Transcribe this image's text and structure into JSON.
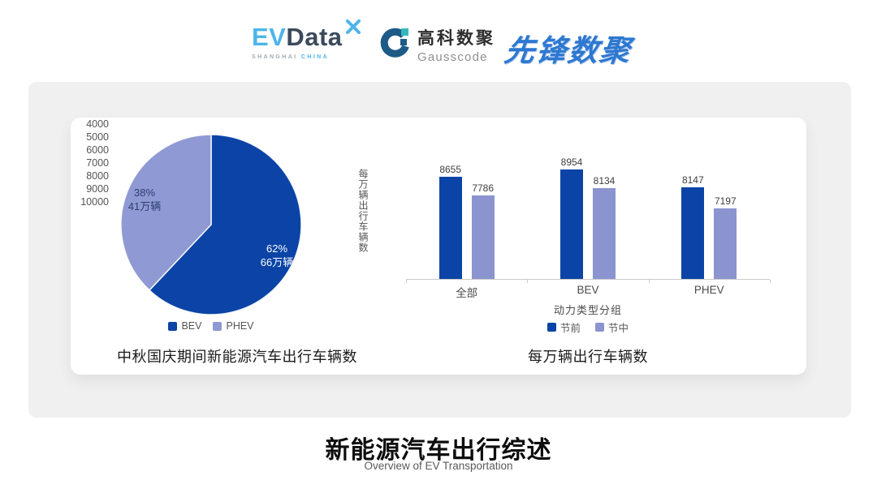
{
  "logos": {
    "evdata": {
      "ev": "EV",
      "data": "Data",
      "city": "SHANGHAI",
      "country": "CHINA"
    },
    "gausscode": {
      "cn": "高科数聚",
      "en": "Gausscode"
    },
    "xianfeng": {
      "text": "先锋数聚"
    }
  },
  "footer": {
    "title": "新能源汽车出行综述",
    "subtitle": "Overview of EV Transportation"
  },
  "chart_data": [
    {
      "type": "pie",
      "title": "中秋国庆期间新能源汽车出行车辆数",
      "legend_position": "bottom",
      "start_angle_deg": 0,
      "slices": [
        {
          "name": "BEV",
          "pct": 62,
          "pct_label": "62%",
          "count_label": "66万辆",
          "color": "#0b44a6"
        },
        {
          "name": "PHEV",
          "pct": 38,
          "pct_label": "38%",
          "count_label": "41万辆",
          "color": "#8f99d3"
        }
      ]
    },
    {
      "type": "bar",
      "title": "每万辆出行车辆数",
      "xlabel": "动力类型分组",
      "ylabel": "每万辆出行车辆数",
      "categories": [
        "全部",
        "BEV",
        "PHEV"
      ],
      "series": [
        {
          "name": "节前",
          "color": "#0b44a6",
          "values": [
            8655,
            8954,
            8147
          ]
        },
        {
          "name": "节中",
          "color": "#8b94cf",
          "values": [
            7786,
            8134,
            7197
          ]
        }
      ],
      "ylim": [
        4000,
        10000
      ],
      "yticks": [
        4000,
        5000,
        6000,
        7000,
        8000,
        9000,
        10000
      ],
      "grid": false,
      "legend_position": "bottom"
    }
  ]
}
